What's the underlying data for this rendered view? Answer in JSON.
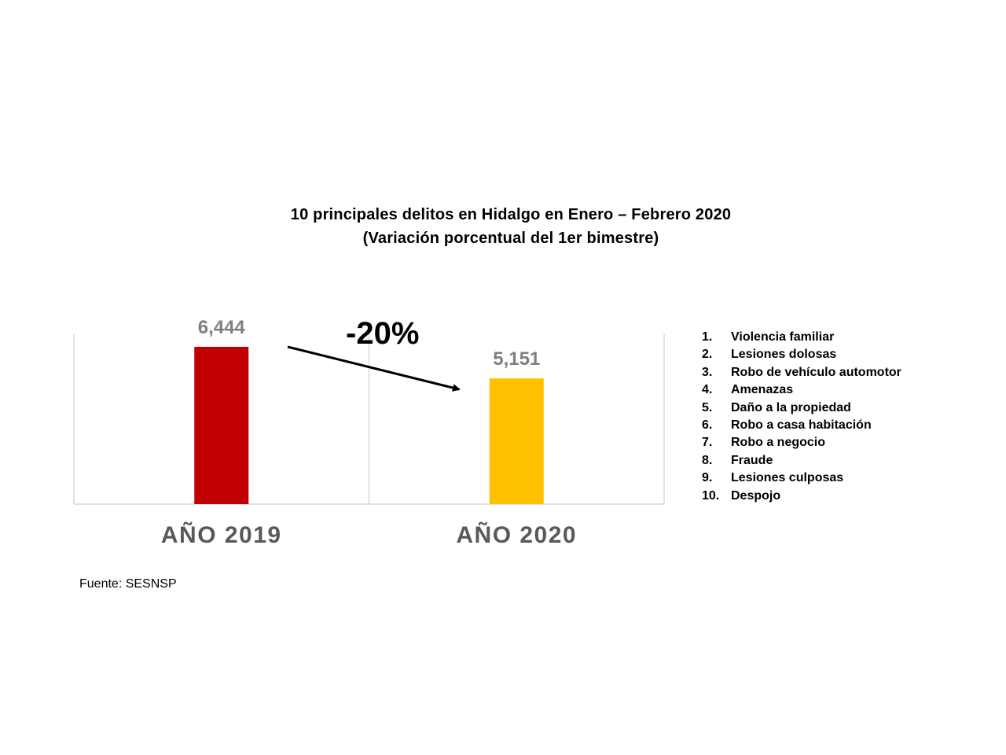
{
  "title": {
    "line1": "10 principales delitos en Hidalgo en Enero – Febrero 2020",
    "line2": "(Variación porcentual del 1er bimestre)"
  },
  "chart_data": {
    "type": "bar",
    "categories": [
      "AÑO 2019",
      "AÑO 2020"
    ],
    "values": [
      6444,
      5151
    ],
    "value_labels": [
      "6,444",
      "5,151"
    ],
    "bar_colors": [
      "#c00000",
      "#ffc000"
    ],
    "ylim": [
      0,
      6444
    ],
    "grid": false,
    "annotation": "-20%"
  },
  "legend": {
    "items": [
      {
        "num": "1.",
        "label": "Violencia familiar"
      },
      {
        "num": "2.",
        "label": "Lesiones dolosas"
      },
      {
        "num": "3.",
        "label": "Robo de vehículo automotor"
      },
      {
        "num": "4.",
        "label": "Amenazas"
      },
      {
        "num": "5.",
        "label": "Daño a la propiedad"
      },
      {
        "num": "6.",
        "label": "Robo a casa habitación"
      },
      {
        "num": "7.",
        "label": "Robo a negocio"
      },
      {
        "num": "8.",
        "label": "Fraude"
      },
      {
        "num": "9.",
        "label": "Lesiones culposas"
      },
      {
        "num": "10.",
        "label": "Despojo"
      }
    ]
  },
  "source": "Fuente: SESNSP"
}
